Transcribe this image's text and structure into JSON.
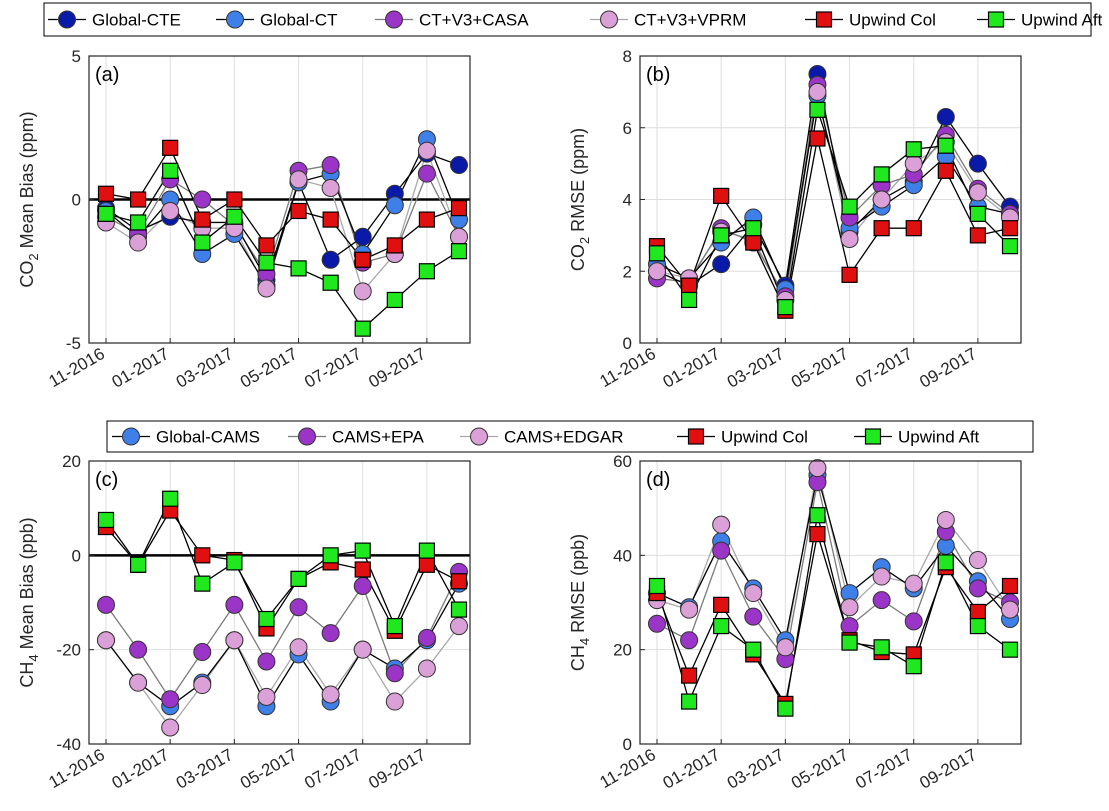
{
  "chart_data": [
    {
      "id": "a",
      "type": "line",
      "panel_label": "(a)",
      "ylabel_main": "CO",
      "ylabel_sub": "2",
      "ylabel_rest": " Mean Bias (ppm)",
      "ylim": [
        -5,
        5
      ],
      "yticks": [
        "-5",
        "0",
        "5"
      ],
      "xticks": [
        "11-2016",
        "01-2017",
        "03-2017",
        "05-2017",
        "07-2017",
        "09-2017"
      ],
      "zero_line": true,
      "x": [
        "11-2016",
        "12-2016",
        "01-2017",
        "02-2017",
        "03-2017",
        "04-2017",
        "05-2017",
        "06-2017",
        "07-2017",
        "08-2017",
        "09-2017",
        "10-2017"
      ],
      "series": [
        {
          "name": "Global-CTE",
          "values": [
            -0.3,
            -1.1,
            -0.6,
            -0.8,
            -0.8,
            -2.8,
            0.6,
            -2.1,
            -1.3,
            0.2,
            1.6,
            1.2
          ]
        },
        {
          "name": "Global-CT",
          "values": [
            -0.4,
            -1.3,
            0.0,
            -1.9,
            -1.2,
            -3.0,
            0.6,
            0.9,
            -1.9,
            -0.2,
            2.1,
            -0.7
          ]
        },
        {
          "name": "CT+V3+CASA",
          "values": [
            -0.6,
            -1.2,
            0.7,
            0.0,
            -0.9,
            -2.6,
            1.0,
            1.2,
            -2.2,
            -1.9,
            0.9,
            -1.3
          ]
        },
        {
          "name": "CT+V3+VPRM",
          "values": [
            -0.8,
            -1.5,
            -0.4,
            -1.0,
            -1.0,
            -3.1,
            0.7,
            0.4,
            -3.2,
            -1.9,
            1.7,
            -1.3
          ]
        },
        {
          "name": "Upwind Col",
          "values": [
            0.2,
            0.0,
            1.8,
            -0.7,
            0.0,
            -1.6,
            -0.4,
            -0.7,
            -2.1,
            -1.6,
            -0.7,
            -0.3
          ]
        },
        {
          "name": "Upwind Aft",
          "values": [
            -0.5,
            -0.8,
            1.0,
            -1.5,
            -0.6,
            -2.2,
            -2.4,
            -2.9,
            -4.5,
            -3.5,
            -2.5,
            -1.8
          ]
        }
      ]
    },
    {
      "id": "b",
      "type": "line",
      "panel_label": "(b)",
      "ylabel_main": "CO",
      "ylabel_sub": "2",
      "ylabel_rest": " RMSE (ppm)",
      "ylim": [
        0,
        8
      ],
      "yticks": [
        "0",
        "2",
        "4",
        "6",
        "8"
      ],
      "xticks": [
        "11-2016",
        "01-2017",
        "03-2017",
        "05-2017",
        "07-2017",
        "09-2017"
      ],
      "zero_line": false,
      "x": [
        "11-2016",
        "12-2016",
        "01-2017",
        "02-2017",
        "03-2017",
        "04-2017",
        "05-2017",
        "06-2017",
        "07-2017",
        "08-2017",
        "09-2017",
        "10-2017"
      ],
      "series": [
        {
          "name": "Global-CTE",
          "values": [
            2.0,
            1.6,
            2.2,
            3.3,
            1.6,
            7.5,
            3.1,
            4.0,
            4.5,
            6.3,
            5.0,
            3.8
          ]
        },
        {
          "name": "Global-CT",
          "values": [
            2.2,
            1.8,
            2.8,
            3.5,
            1.5,
            6.9,
            3.2,
            3.8,
            4.4,
            5.2,
            3.8,
            3.6
          ]
        },
        {
          "name": "CT+V3+CASA",
          "values": [
            1.8,
            1.7,
            3.2,
            2.8,
            1.3,
            7.2,
            3.5,
            4.4,
            4.7,
            5.8,
            4.3,
            3.6
          ]
        },
        {
          "name": "CT+V3+VPRM",
          "values": [
            2.0,
            1.8,
            3.1,
            2.9,
            1.2,
            7.0,
            2.9,
            4.0,
            5.0,
            5.6,
            4.2,
            3.5
          ]
        },
        {
          "name": "Upwind Col",
          "values": [
            2.7,
            1.6,
            4.1,
            2.8,
            0.9,
            5.7,
            1.9,
            3.2,
            3.2,
            4.8,
            3.0,
            3.2
          ]
        },
        {
          "name": "Upwind Aft",
          "values": [
            2.5,
            1.2,
            3.0,
            3.2,
            1.0,
            6.5,
            3.8,
            4.7,
            5.4,
            5.5,
            3.6,
            2.7
          ]
        }
      ]
    },
    {
      "id": "c",
      "type": "line",
      "panel_label": "(c)",
      "ylabel_main": "CH",
      "ylabel_sub": "4",
      "ylabel_rest": " Mean Bias (ppb)",
      "ylim": [
        -40,
        20
      ],
      "yticks": [
        "-40",
        "-20",
        "0",
        "20"
      ],
      "xticks": [
        "11-2016",
        "01-2017",
        "03-2017",
        "05-2017",
        "07-2017",
        "09-2017"
      ],
      "zero_line": true,
      "x": [
        "11-2016",
        "12-2016",
        "01-2017",
        "02-2017",
        "03-2017",
        "04-2017",
        "05-2017",
        "06-2017",
        "07-2017",
        "08-2017",
        "09-2017",
        "10-2017"
      ],
      "series": [
        {
          "name": "Global-CAMS",
          "values": [
            -18,
            -27,
            -32,
            -27,
            -18,
            -32,
            -21,
            -31,
            -20,
            -24,
            -18,
            -6
          ]
        },
        {
          "name": "CAMS+EPA",
          "values": [
            -10.5,
            -20,
            -30.5,
            -20.5,
            -10.5,
            -22.5,
            -11,
            -16.5,
            -6.5,
            -25,
            -17.5,
            -3.5
          ]
        },
        {
          "name": "CAMS+EDGAR",
          "values": [
            -18,
            -27,
            -36.5,
            -27.5,
            -18,
            -30,
            -19.5,
            -29.5,
            -20,
            -31,
            -24,
            -15
          ]
        },
        {
          "name": "Upwind Col",
          "values": [
            6,
            -2,
            9.5,
            0,
            -1,
            -15.5,
            -5,
            -1.5,
            -3,
            -16,
            -2,
            -5.5
          ]
        },
        {
          "name": "Upwind Aft",
          "values": [
            7.5,
            -2,
            12,
            -6,
            -1.5,
            -13.5,
            -5,
            0,
            1,
            -15,
            1,
            -11.5
          ]
        }
      ]
    },
    {
      "id": "d",
      "type": "line",
      "panel_label": "(d)",
      "ylabel_main": "CH",
      "ylabel_sub": "4",
      "ylabel_rest": " RMSE (ppb)",
      "ylim": [
        0,
        60
      ],
      "yticks": [
        "0",
        "20",
        "40",
        "60"
      ],
      "xticks": [
        "11-2016",
        "01-2017",
        "03-2017",
        "05-2017",
        "07-2017",
        "09-2017"
      ],
      "zero_line": false,
      "x": [
        "11-2016",
        "12-2016",
        "01-2017",
        "02-2017",
        "03-2017",
        "04-2017",
        "05-2017",
        "06-2017",
        "07-2017",
        "08-2017",
        "09-2017",
        "10-2017"
      ],
      "series": [
        {
          "name": "Global-CAMS",
          "values": [
            32,
            29,
            43,
            33,
            22,
            57,
            32,
            37.5,
            33,
            42,
            34.5,
            26.5
          ]
        },
        {
          "name": "CAMS+EPA",
          "values": [
            25.5,
            22,
            41,
            27,
            18,
            55.5,
            25,
            30.5,
            26,
            45,
            33,
            30
          ]
        },
        {
          "name": "CAMS+EDGAR",
          "values": [
            30.5,
            28.5,
            46.5,
            32,
            20.5,
            58.5,
            29,
            35.5,
            34,
            47.5,
            39,
            28.5
          ]
        },
        {
          "name": "Upwind Col",
          "values": [
            32,
            14.5,
            29.5,
            19,
            8.5,
            44.5,
            22,
            19.5,
            19,
            37.5,
            28,
            33.5
          ]
        },
        {
          "name": "Upwind Aft",
          "values": [
            33.5,
            9,
            25,
            20,
            7.5,
            48.5,
            21.5,
            20.5,
            16.5,
            38.5,
            25,
            20
          ]
        }
      ]
    }
  ],
  "styles": {
    "Global-CTE": {
      "color": "#0a1aa8",
      "marker": "circle",
      "line": "#000000"
    },
    "Global-CT": {
      "color": "#3f7fe8",
      "marker": "circle",
      "line": "#000000"
    },
    "CT+V3+CASA": {
      "color": "#9b35c8",
      "marker": "circle",
      "line": "#7a7a7a"
    },
    "CT+V3+VPRM": {
      "color": "#dca0d8",
      "marker": "circle",
      "line": "#a8a8a8"
    },
    "Upwind Col": {
      "color": "#e01010",
      "marker": "square",
      "line": "#000000"
    },
    "Upwind Aft": {
      "color": "#1fe81f",
      "marker": "square",
      "line": "#000000"
    },
    "Global-CAMS": {
      "color": "#3f7fe8",
      "marker": "circle",
      "line": "#000000"
    },
    "CAMS+EPA": {
      "color": "#9b35c8",
      "marker": "circle",
      "line": "#7a7a7a"
    },
    "CAMS+EDGAR": {
      "color": "#dca0d8",
      "marker": "circle",
      "line": "#a8a8a8"
    }
  },
  "legends": {
    "co2": [
      "Global-CTE",
      "Global-CT",
      "CT+V3+CASA",
      "CT+V3+VPRM",
      "Upwind Col",
      "Upwind Aft"
    ],
    "ch4": [
      "Global-CAMS",
      "CAMS+EPA",
      "CAMS+EDGAR",
      "Upwind Col",
      "Upwind Aft"
    ]
  }
}
